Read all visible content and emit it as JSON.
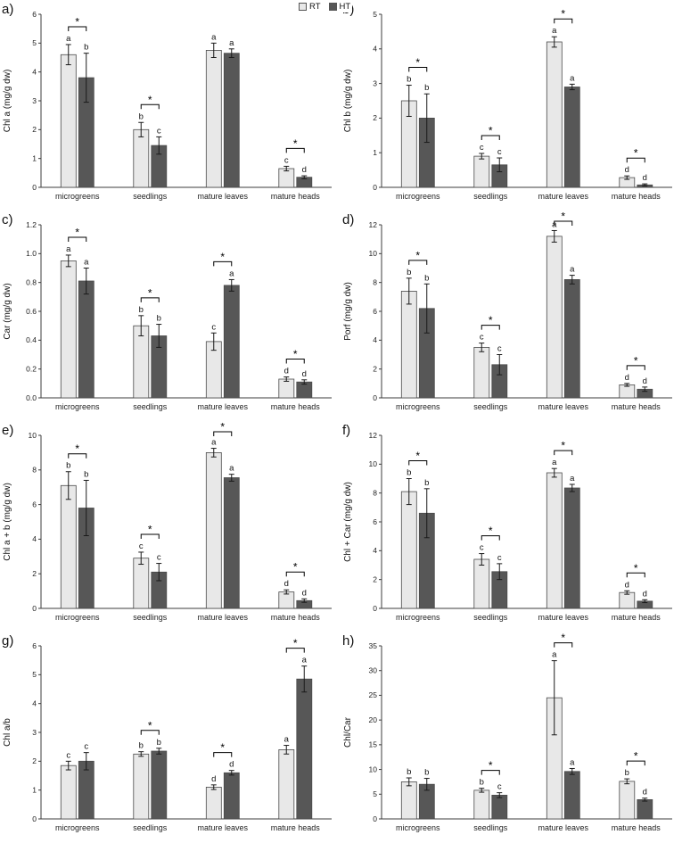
{
  "legend": {
    "rt_label": "RT",
    "ht_label": "HT"
  },
  "colors": {
    "rt": "#e8e8e8",
    "ht": "#575757",
    "bar_border": "#4a4a4a"
  },
  "chart_data": [
    {
      "type": "bar",
      "panel_label": "a)",
      "ylabel": "Chl a (mg/g dw)",
      "ylim": [
        0,
        6
      ],
      "ystep": 1,
      "categories": [
        "microgreens",
        "seedlings",
        "mature leaves",
        "mature heads"
      ],
      "series": [
        {
          "name": "RT",
          "values": [
            4.6,
            2.0,
            4.75,
            0.65
          ],
          "errors": [
            0.35,
            0.25,
            0.25,
            0.08
          ],
          "letters": [
            "a",
            "b",
            "a",
            "c"
          ]
        },
        {
          "name": "HT",
          "values": [
            3.8,
            1.45,
            4.65,
            0.35
          ],
          "errors": [
            0.85,
            0.3,
            0.15,
            0.05
          ],
          "letters": [
            "b",
            "c",
            "a",
            "d"
          ]
        }
      ],
      "sig_brackets": [
        true,
        true,
        false,
        true
      ]
    },
    {
      "type": "bar",
      "panel_label": "b)",
      "ylabel": "Chl b (mg/g dw)",
      "ylim": [
        0,
        5
      ],
      "ystep": 1,
      "categories": [
        "microgreens",
        "seedlings",
        "mature leaves",
        "mature heads"
      ],
      "series": [
        {
          "name": "RT",
          "values": [
            2.5,
            0.9,
            4.2,
            0.28
          ],
          "errors": [
            0.45,
            0.08,
            0.15,
            0.05
          ],
          "letters": [
            "b",
            "c",
            "a",
            "d"
          ]
        },
        {
          "name": "HT",
          "values": [
            2.0,
            0.65,
            2.9,
            0.07
          ],
          "errors": [
            0.7,
            0.2,
            0.08,
            0.03
          ],
          "letters": [
            "b",
            "c",
            "a",
            "d"
          ]
        }
      ],
      "sig_brackets": [
        true,
        true,
        true,
        true
      ]
    },
    {
      "type": "bar",
      "panel_label": "c)",
      "ylabel": "Car (mg/g dw)",
      "ylim": [
        0,
        1.2
      ],
      "ystep": 0.2,
      "categories": [
        "microgreens",
        "seedlings",
        "mature leaves",
        "mature heads"
      ],
      "series": [
        {
          "name": "RT",
          "values": [
            0.95,
            0.5,
            0.39,
            0.13
          ],
          "errors": [
            0.04,
            0.07,
            0.06,
            0.015
          ],
          "letters": [
            "a",
            "b",
            "c",
            "d"
          ]
        },
        {
          "name": "HT",
          "values": [
            0.81,
            0.43,
            0.78,
            0.11
          ],
          "errors": [
            0.09,
            0.08,
            0.04,
            0.015
          ],
          "letters": [
            "a",
            "b",
            "a",
            "d"
          ]
        }
      ],
      "sig_brackets": [
        true,
        true,
        true,
        true
      ]
    },
    {
      "type": "bar",
      "panel_label": "d)",
      "ylabel": "Porf (mg/g dw)",
      "ylim": [
        0,
        12
      ],
      "ystep": 2,
      "categories": [
        "microgreens",
        "seedlings",
        "mature leaves",
        "mature heads"
      ],
      "series": [
        {
          "name": "RT",
          "values": [
            7.4,
            3.5,
            11.2,
            0.9
          ],
          "errors": [
            0.9,
            0.3,
            0.4,
            0.1
          ],
          "letters": [
            "b",
            "c",
            "a",
            "d"
          ]
        },
        {
          "name": "HT",
          "values": [
            6.2,
            2.3,
            8.2,
            0.6
          ],
          "errors": [
            1.7,
            0.7,
            0.3,
            0.15
          ],
          "letters": [
            "b",
            "c",
            "a",
            "d"
          ]
        }
      ],
      "sig_brackets": [
        true,
        true,
        true,
        true
      ]
    },
    {
      "type": "bar",
      "panel_label": "e)",
      "ylabel": "Chl a + b (mg/g dw)",
      "ylim": [
        0,
        10
      ],
      "ystep": 2,
      "categories": [
        "microgreens",
        "seedlings",
        "mature leaves",
        "mature heads"
      ],
      "series": [
        {
          "name": "RT",
          "values": [
            7.1,
            2.9,
            9.0,
            0.95
          ],
          "errors": [
            0.8,
            0.35,
            0.25,
            0.12
          ],
          "letters": [
            "b",
            "c",
            "a",
            "d"
          ]
        },
        {
          "name": "HT",
          "values": [
            5.8,
            2.1,
            7.55,
            0.45
          ],
          "errors": [
            1.6,
            0.5,
            0.2,
            0.1
          ],
          "letters": [
            "b",
            "c",
            "a",
            "d"
          ]
        }
      ],
      "sig_brackets": [
        true,
        true,
        true,
        true
      ]
    },
    {
      "type": "bar",
      "panel_label": "f)",
      "ylabel": "Chl + Car (mg/g dw)",
      "ylim": [
        0,
        12
      ],
      "ystep": 2,
      "categories": [
        "microgreens",
        "seedlings",
        "mature leaves",
        "mature heads"
      ],
      "series": [
        {
          "name": "RT",
          "values": [
            8.1,
            3.4,
            9.4,
            1.1
          ],
          "errors": [
            0.9,
            0.4,
            0.3,
            0.12
          ],
          "letters": [
            "b",
            "c",
            "a",
            "d"
          ]
        },
        {
          "name": "HT",
          "values": [
            6.6,
            2.55,
            8.35,
            0.5
          ],
          "errors": [
            1.7,
            0.55,
            0.25,
            0.1
          ],
          "letters": [
            "b",
            "c",
            "a",
            "d"
          ]
        }
      ],
      "sig_brackets": [
        true,
        true,
        true,
        true
      ]
    },
    {
      "type": "bar",
      "panel_label": "g)",
      "ylabel": "Chl a/b",
      "ylim": [
        0,
        6
      ],
      "ystep": 1,
      "categories": [
        "microgreens",
        "seedlings",
        "mature leaves",
        "mature heads"
      ],
      "series": [
        {
          "name": "RT",
          "values": [
            1.85,
            2.25,
            1.1,
            2.4
          ],
          "errors": [
            0.15,
            0.08,
            0.08,
            0.15
          ],
          "letters": [
            "c",
            "b",
            "d",
            "a"
          ]
        },
        {
          "name": "HT",
          "values": [
            2.0,
            2.35,
            1.6,
            4.85
          ],
          "errors": [
            0.3,
            0.1,
            0.08,
            0.45
          ],
          "letters": [
            "c",
            "b",
            "d",
            "a"
          ]
        }
      ],
      "sig_brackets": [
        false,
        true,
        true,
        true
      ]
    },
    {
      "type": "bar",
      "panel_label": "h)",
      "ylabel": "Chl/Car",
      "ylim": [
        0,
        35
      ],
      "ystep": 5,
      "categories": [
        "microgreens",
        "seedlings",
        "mature leaves",
        "mature heads"
      ],
      "series": [
        {
          "name": "RT",
          "values": [
            7.5,
            5.8,
            24.5,
            7.6
          ],
          "errors": [
            0.8,
            0.4,
            7.5,
            0.5
          ],
          "letters": [
            "b",
            "b",
            "a",
            "b"
          ]
        },
        {
          "name": "HT",
          "values": [
            7.0,
            4.8,
            9.6,
            3.9
          ],
          "errors": [
            1.2,
            0.5,
            0.6,
            0.3
          ],
          "letters": [
            "b",
            "c",
            "a",
            "d"
          ]
        }
      ],
      "sig_brackets": [
        false,
        true,
        true,
        true
      ]
    }
  ]
}
